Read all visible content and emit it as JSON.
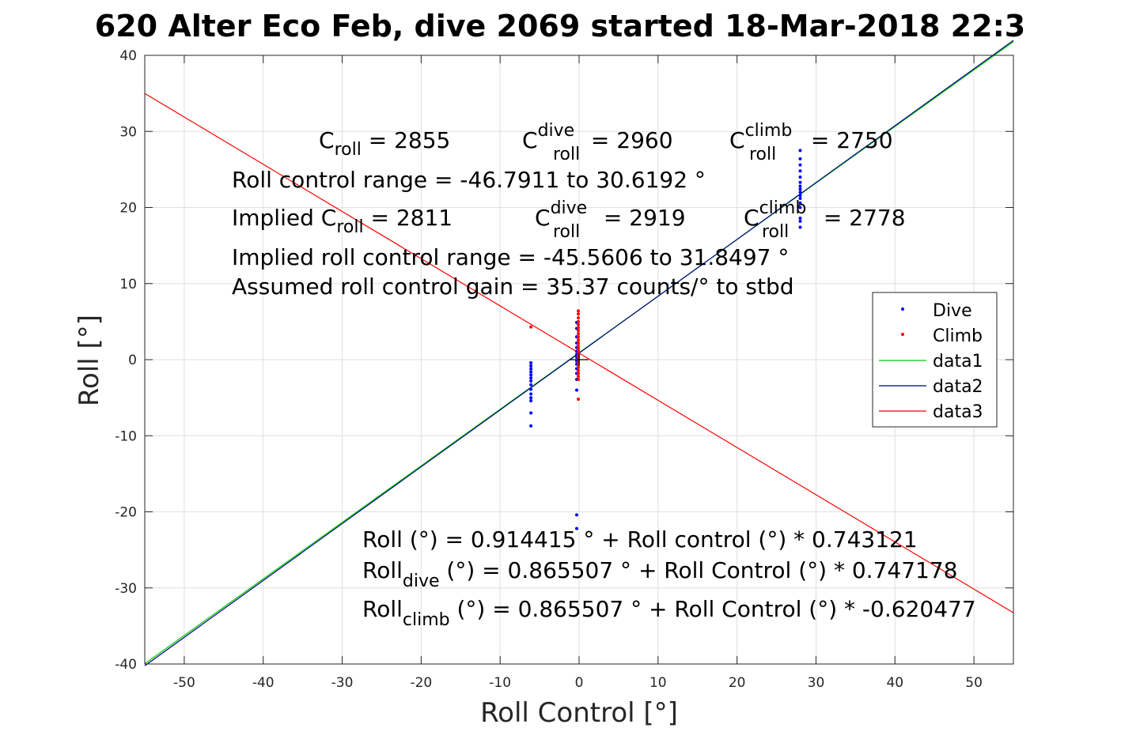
{
  "chart_data": {
    "type": "scatter",
    "title": "620 Alter Eco Feb, dive 2069 started 18-Mar-2018 22:3",
    "xlabel": "Roll Control [°]",
    "ylabel": "Roll [°]",
    "xlim": [
      -55,
      55
    ],
    "ylim": [
      -40,
      40
    ],
    "xticks": [
      -50,
      -40,
      -30,
      -20,
      -10,
      0,
      10,
      20,
      30,
      40,
      50
    ],
    "yticks": [
      -40,
      -30,
      -20,
      -10,
      0,
      10,
      20,
      30,
      40
    ],
    "xtick_labels": [
      "-50",
      "-40",
      "-30",
      "-20",
      "-10",
      "0",
      "10",
      "20",
      "30",
      "40",
      "50"
    ],
    "ytick_labels": [
      "-40",
      "-30",
      "-20",
      "-10",
      "0",
      "10",
      "20",
      "30",
      "40"
    ],
    "grid": true,
    "legend_position": "right",
    "series": [
      {
        "name": "Dive",
        "kind": "points",
        "color": "#0000ff",
        "points": [
          [
            -6.1,
            -0.4
          ],
          [
            -6.1,
            -0.8
          ],
          [
            -6.1,
            -1.2
          ],
          [
            -6.1,
            -1.6
          ],
          [
            -6.1,
            -2.0
          ],
          [
            -6.1,
            -2.4
          ],
          [
            -6.1,
            -2.8
          ],
          [
            -6.1,
            -3.3
          ],
          [
            -6.1,
            -3.9
          ],
          [
            -6.1,
            -4.5
          ],
          [
            -6.1,
            -5.0
          ],
          [
            -6.1,
            -5.4
          ],
          [
            -6.1,
            -7.0
          ],
          [
            -6.1,
            -8.7
          ],
          [
            -0.3,
            4.9
          ],
          [
            -0.3,
            4.1
          ],
          [
            -0.3,
            3.0
          ],
          [
            -0.3,
            2.2
          ],
          [
            -0.3,
            1.6
          ],
          [
            -0.3,
            1.1
          ],
          [
            -0.3,
            0.7
          ],
          [
            -0.3,
            0.3
          ],
          [
            -0.3,
            -0.2
          ],
          [
            -0.3,
            -0.6
          ],
          [
            -0.3,
            -1.2
          ],
          [
            -0.3,
            -1.8
          ],
          [
            -0.3,
            -2.6
          ],
          [
            -0.3,
            -4.0
          ],
          [
            -0.3,
            -20.4
          ],
          [
            -0.3,
            -22.2
          ],
          [
            28.0,
            27.5
          ],
          [
            28.0,
            26.4
          ],
          [
            28.0,
            25.6
          ],
          [
            28.0,
            24.8
          ],
          [
            28.0,
            24.0
          ],
          [
            28.0,
            23.3
          ],
          [
            28.0,
            22.8
          ],
          [
            28.0,
            22.4
          ],
          [
            28.0,
            22.0
          ],
          [
            28.0,
            21.6
          ],
          [
            28.0,
            21.2
          ],
          [
            28.0,
            20.6
          ],
          [
            28.0,
            20.0
          ],
          [
            28.0,
            18.6
          ],
          [
            28.0,
            18.2
          ],
          [
            28.0,
            17.4
          ]
        ]
      },
      {
        "name": "Climb",
        "kind": "points",
        "color": "#ff0000",
        "points": [
          [
            -6.1,
            4.3
          ],
          [
            -0.1,
            6.4
          ],
          [
            -0.1,
            6.0
          ],
          [
            -0.1,
            5.5
          ],
          [
            -0.1,
            5.0
          ],
          [
            -0.1,
            4.6
          ],
          [
            -0.1,
            4.2
          ],
          [
            -0.1,
            3.8
          ],
          [
            -0.1,
            3.4
          ],
          [
            -0.1,
            3.0
          ],
          [
            -0.1,
            2.6
          ],
          [
            -0.1,
            2.2
          ],
          [
            -0.1,
            1.8
          ],
          [
            -0.1,
            1.5
          ],
          [
            -0.1,
            1.2
          ],
          [
            -0.1,
            0.9
          ],
          [
            -0.1,
            0.6
          ],
          [
            -0.1,
            0.3
          ],
          [
            -0.1,
            0.0
          ],
          [
            -0.1,
            -0.3
          ],
          [
            -0.1,
            -0.6
          ],
          [
            -0.1,
            -1.0
          ],
          [
            -0.1,
            -1.4
          ],
          [
            -0.1,
            -1.8
          ],
          [
            -0.1,
            -2.2
          ],
          [
            -0.1,
            -2.6
          ],
          [
            -0.1,
            -5.2
          ]
        ]
      },
      {
        "name": "data1",
        "kind": "line",
        "color": "#00cc00",
        "x": [
          -55,
          55
        ],
        "y": [
          -39.96,
          41.79
        ]
      },
      {
        "name": "data2",
        "kind": "line",
        "color": "#00007f",
        "x": [
          -55,
          55
        ],
        "y": [
          -40.23,
          41.96
        ]
      },
      {
        "name": "data3",
        "kind": "line",
        "color": "#ff0000",
        "x": [
          -55,
          55
        ],
        "y": [
          34.99,
          -33.26
        ]
      }
    ],
    "annotations": {
      "c_roll": {
        "base": "C",
        "sub": "roll",
        "rest": " = 2855"
      },
      "c_roll_dive": {
        "base": "C",
        "sup": "dive",
        "sub": "roll",
        "rest": " = 2960"
      },
      "c_roll_climb": {
        "base": "C",
        "sup": "climb",
        "sub": "roll",
        "rest": " = 2750"
      },
      "range": "Roll control range = -46.7911 to 30.6192 °",
      "implied_c_roll": {
        "base": "Implied C",
        "sub": "roll",
        "rest": " = 2811"
      },
      "implied_c_roll_dive": {
        "base": "C",
        "sup": "dive",
        "sub": "roll",
        "rest": " = 2919"
      },
      "implied_c_roll_climb": {
        "base": "C",
        "sup": "climb",
        "sub": "roll",
        "rest": " = 2778"
      },
      "implied_range": "Implied roll control range = -45.5606 to 31.8497 °",
      "gain": "Assumed roll control gain = 35.37 counts/° to stbd",
      "fit_all": "Roll (°) = 0.914415 ° + Roll control (°) * 0.743121",
      "fit_dive": {
        "base": "Roll",
        "sub": "dive",
        "rest": " (°) = 0.865507 ° + Roll Control (°) * 0.747178"
      },
      "fit_climb": {
        "base": "Roll",
        "sub": "climb",
        "rest": " (°) = 0.865507 ° + Roll Control (°) * -0.620477"
      }
    }
  }
}
